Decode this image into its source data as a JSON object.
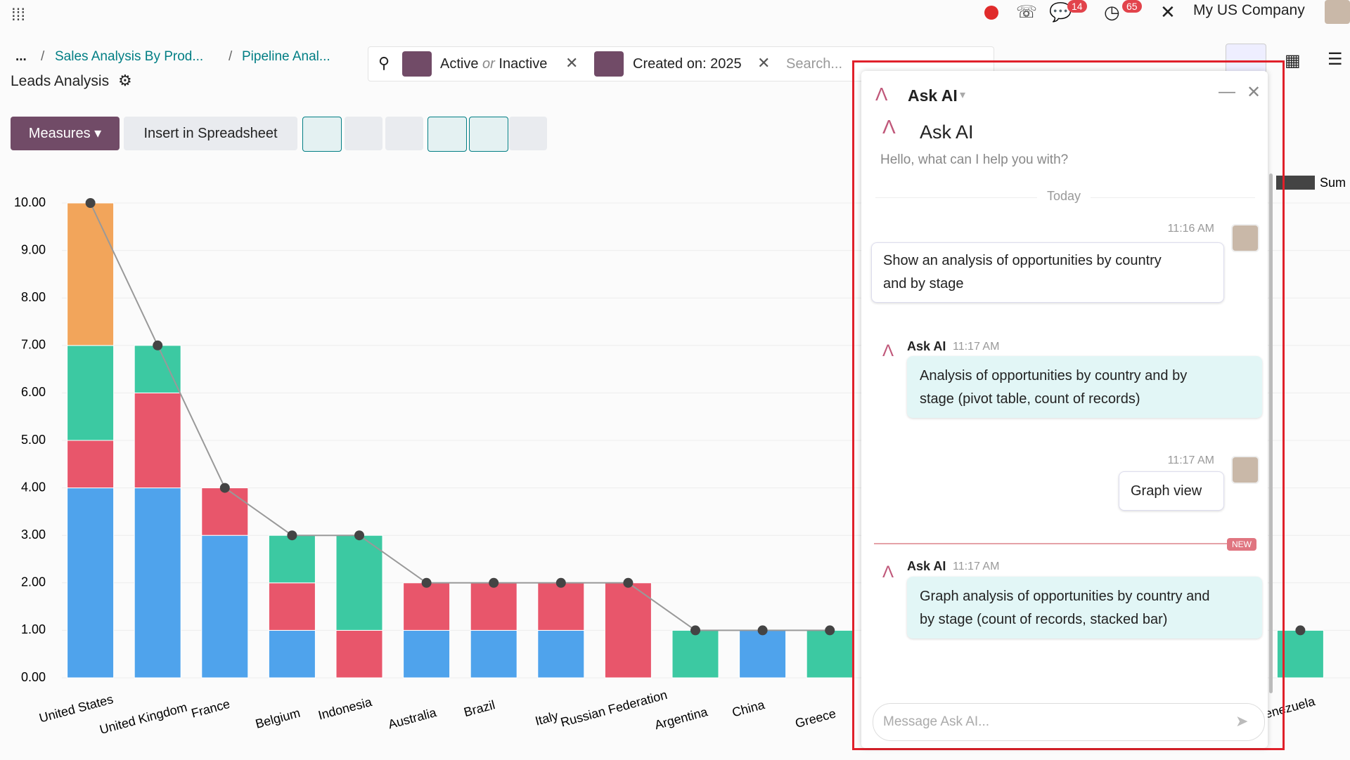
{
  "topbar": {
    "company": "My US Company",
    "badges": [
      14,
      65
    ]
  },
  "breadcrumbs": {
    "ellipsis": "...",
    "items": [
      "Sales Analysis By Prod...",
      "Pipeline Anal..."
    ],
    "current": "Leads Analysis"
  },
  "search": {
    "filters": [
      {
        "parts": [
          "Active",
          "or",
          "Inactive"
        ]
      },
      {
        "parts": [
          "Created on: 2025"
        ]
      }
    ],
    "placeholder": "Search..."
  },
  "toolbar": {
    "buttons": [
      "Measures",
      "Insert in Spreadsheet"
    ]
  },
  "chart_data": {
    "type": "bar",
    "stacked": true,
    "categories": [
      "United States",
      "United Kingdom",
      "France",
      "Belgium",
      "Indonesia",
      "Australia",
      "Brazil",
      "Italy",
      "Russian Federation",
      "Argentina",
      "China",
      "Greece",
      null,
      null,
      null,
      null,
      null,
      null,
      "Venezuela"
    ],
    "series": [
      {
        "color": "#4fa3ec",
        "values": [
          4,
          4,
          3,
          1,
          0,
          1,
          1,
          1,
          0,
          0,
          1,
          0,
          null,
          null,
          null,
          null,
          null,
          null,
          0
        ]
      },
      {
        "color": "#e8566b",
        "values": [
          1,
          2,
          1,
          1,
          1,
          1,
          1,
          1,
          2,
          0,
          0,
          0,
          null,
          null,
          null,
          null,
          null,
          null,
          0
        ]
      },
      {
        "color": "#3cc9a2",
        "values": [
          2,
          1,
          0,
          1,
          2,
          0,
          0,
          0,
          0,
          1,
          0,
          1,
          null,
          null,
          null,
          null,
          null,
          null,
          1
        ]
      },
      {
        "color": "#f2a55b",
        "values": [
          3,
          0,
          0,
          0,
          0,
          0,
          0,
          0,
          0,
          0,
          0,
          0,
          null,
          null,
          null,
          null,
          null,
          null,
          0
        ]
      },
      {
        "name": "Sum",
        "type": "line",
        "color": "#444444",
        "values": [
          10,
          7,
          4,
          3,
          3,
          2,
          2,
          2,
          2,
          1,
          1,
          1,
          null,
          null,
          null,
          null,
          null,
          null,
          1
        ]
      }
    ],
    "ylim": [
      0,
      10
    ],
    "yticks": [
      {
        "value": 0,
        "label": "0.00"
      },
      {
        "value": 1,
        "label": "1.00"
      },
      {
        "value": 2,
        "label": "2.00"
      },
      {
        "value": 3,
        "label": "3.00"
      },
      {
        "value": 4,
        "label": "4.00"
      },
      {
        "value": 5,
        "label": "5.00"
      },
      {
        "value": 6,
        "label": "6.00"
      },
      {
        "value": 7,
        "label": "7.00"
      },
      {
        "value": 8,
        "label": "8.00"
      },
      {
        "value": 9,
        "label": "9.00"
      },
      {
        "value": 10,
        "label": "10.00"
      }
    ],
    "grid": true
  },
  "chat": {
    "header": "Ask AI",
    "title": "Ask AI",
    "greeting": "Hello, what can I help you with?",
    "day": "Today",
    "messages": [
      {
        "time": "11:16 AM",
        "lines": [
          "Show an analysis of opportunities by country",
          "and by stage"
        ]
      },
      {
        "author": "Ask AI",
        "time": "11:17 AM",
        "lines": [
          "Analysis of opportunities by country and by",
          "stage (pivot table, count of records)"
        ]
      },
      {
        "time": "11:17 AM",
        "lines": [
          "Graph view"
        ]
      },
      {
        "author": "Ask AI",
        "time": "11:17 AM",
        "lines": [
          "Graph analysis of opportunities by country and",
          "by stage (count of records, stacked bar)"
        ]
      }
    ],
    "new_label": "NEW",
    "input_placeholder": "Message Ask AI..."
  }
}
